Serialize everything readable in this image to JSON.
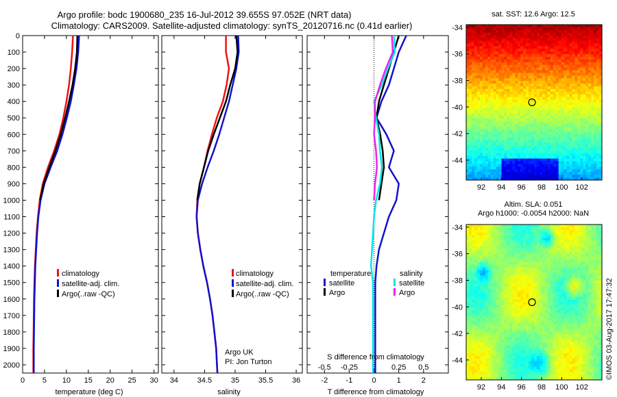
{
  "header": {
    "title_line1": "Argo profile: bodc 1900680_235 16-Jul-2012 39.655S 97.052E (NRT data)",
    "title_line2": "Climatology: CARS2009. Satellite-adjusted climatology: synTS_20120716.nc (0.41d earlier)"
  },
  "panels": {
    "temperature": {
      "xlabel": "temperature (deg C)"
    },
    "salinity": {
      "xlabel": "salinity",
      "note_line1": "Argo UK",
      "note_line2": "PI: Jon Turton"
    },
    "difference": {
      "xlabel_top": "S difference from climatology",
      "xlabel_bottom": "T difference from climatology"
    }
  },
  "legends": {
    "profile": {
      "items": [
        "climatology",
        "satellite-adj. clim.",
        "Argo(..raw -QC)"
      ]
    },
    "difference": {
      "temperature_header": "temperature",
      "salinity_header": "salinity",
      "t_items": [
        "satellite",
        "Argo"
      ],
      "s_items": [
        "satellite",
        "Argo"
      ]
    }
  },
  "maps": {
    "sst": {
      "title": "sat. SST: 12.6 Argo: 12.5"
    },
    "sla": {
      "title_line1": "Altim. SLA: 0.051",
      "title_line2": "Argo h1000: -0.0054 h2000: NaN"
    }
  },
  "stamp": "©IMOS 03-Aug-2017 17:47:32",
  "colors": {
    "climatology": "#ee1111",
    "satellite": "#1111cc",
    "argo": "#000000",
    "sal_satellite": "#00e5e5",
    "sal_argo": "#ee22ee"
  },
  "chart_data": [
    {
      "type": "line",
      "name": "temperature-profile",
      "xlabel": "temperature (deg C)",
      "ylabel": "",
      "xlim": [
        0,
        31
      ],
      "ylim": [
        2050,
        0
      ],
      "xticks": [
        0,
        5,
        10,
        15,
        20,
        25,
        30
      ],
      "yticks": [
        0,
        100,
        200,
        300,
        400,
        500,
        600,
        700,
        800,
        900,
        1000,
        1100,
        1200,
        1300,
        1400,
        1500,
        1600,
        1700,
        1800,
        1900,
        2000
      ],
      "series": [
        {
          "name": "climatology",
          "x": [
            11.5,
            11.3,
            11.0,
            10.6,
            10.0,
            9.3,
            8.4,
            7.2,
            5.8,
            4.6,
            3.9,
            3.5,
            3.2,
            3.0,
            2.8,
            2.7,
            2.6,
            2.55,
            2.5,
            2.45,
            2.45
          ],
          "y": [
            0,
            100,
            200,
            300,
            400,
            500,
            600,
            700,
            800,
            900,
            1000,
            1100,
            1200,
            1300,
            1400,
            1500,
            1600,
            1700,
            1800,
            1900,
            2050
          ]
        },
        {
          "name": "satellite-adj. clim.",
          "x": [
            12.9,
            12.7,
            12.3,
            11.7,
            11.0,
            10.1,
            9.1,
            7.9,
            6.4,
            5.0,
            4.1,
            3.6,
            3.3,
            3.1,
            2.9,
            2.8,
            2.7,
            2.65,
            2.6,
            2.55,
            2.55
          ],
          "y": [
            0,
            100,
            200,
            300,
            400,
            500,
            600,
            700,
            800,
            900,
            1000,
            1100,
            1200,
            1300,
            1400,
            1500,
            1600,
            1700,
            1800,
            1900,
            2050
          ]
        },
        {
          "name": "Argo(..raw -QC)",
          "x": [
            12.5,
            12.4,
            12.0,
            11.4,
            10.6,
            9.7,
            8.7,
            7.5,
            6.1,
            4.8,
            4.0
          ],
          "y": [
            0,
            100,
            200,
            300,
            400,
            500,
            600,
            700,
            800,
            900,
            1000
          ]
        }
      ]
    },
    {
      "type": "line",
      "name": "salinity-profile",
      "xlabel": "salinity",
      "ylabel": "",
      "xlim": [
        33.8,
        36.1
      ],
      "ylim": [
        2050,
        0
      ],
      "xticks": [
        34,
        34.5,
        35,
        35.5,
        36
      ],
      "series": [
        {
          "name": "climatology",
          "x": [
            34.85,
            34.85,
            34.9,
            34.86,
            34.8,
            34.7,
            34.62,
            34.55,
            34.49,
            34.42,
            34.38,
            34.37,
            34.39,
            34.43,
            34.48,
            34.54,
            34.59,
            34.63,
            34.66,
            34.69,
            34.71
          ],
          "y": [
            0,
            100,
            200,
            300,
            400,
            500,
            600,
            700,
            800,
            900,
            1000,
            1100,
            1200,
            1300,
            1400,
            1500,
            1600,
            1700,
            1800,
            1900,
            2050
          ]
        },
        {
          "name": "satellite-adj. clim.",
          "x": [
            35.05,
            35.06,
            35.02,
            34.96,
            34.9,
            34.82,
            34.74,
            34.65,
            34.55,
            34.46,
            34.39,
            34.37,
            34.39,
            34.43,
            34.48,
            34.54,
            34.59,
            34.63,
            34.66,
            34.69,
            34.71
          ],
          "y": [
            0,
            100,
            200,
            300,
            400,
            500,
            600,
            700,
            800,
            900,
            1000,
            1100,
            1200,
            1300,
            1400,
            1500,
            1600,
            1700,
            1800,
            1900,
            2050
          ]
        },
        {
          "name": "Argo(..raw -QC)",
          "x": [
            35.02,
            35.04,
            35.0,
            34.92,
            34.85,
            34.75,
            34.65,
            34.56,
            34.49,
            34.42,
            34.38
          ],
          "y": [
            0,
            100,
            200,
            300,
            400,
            500,
            600,
            700,
            800,
            900,
            1000
          ]
        }
      ]
    },
    {
      "type": "line",
      "name": "difference-profile",
      "xlabel_top": "S difference from climatology",
      "xlabel_bottom": "T difference from climatology",
      "xlim_T": [
        -2.7,
        3.0
      ],
      "xticks_T": [
        -2,
        -1,
        0,
        1,
        2
      ],
      "xlim_S": [
        -0.675,
        0.75
      ],
      "xticks_S": [
        -0.5,
        -0.25,
        0,
        0.25,
        0.5
      ],
      "xticklabels_S": [
        "-0.5",
        "-0.25",
        "0",
        "0.25",
        "0.5"
      ],
      "ylim": [
        2050,
        0
      ],
      "series": [
        {
          "name": "temperature satellite",
          "quantity": "T",
          "x": [
            1.3,
            1.0,
            0.8,
            0.6,
            0.3,
            0.1,
            0.5,
            0.8,
            0.6,
            1.0,
            0.9,
            0.6,
            0.4,
            0.2,
            0.1,
            0.05,
            0.05,
            0.05,
            0.05,
            0.05,
            0.05
          ],
          "y": [
            0,
            100,
            200,
            300,
            400,
            500,
            600,
            700,
            800,
            900,
            1000,
            1100,
            1200,
            1300,
            1400,
            1500,
            1600,
            1700,
            1800,
            1900,
            2050
          ]
        },
        {
          "name": "temperature Argo",
          "quantity": "T",
          "x": [
            1.0,
            0.8,
            0.6,
            0.4,
            0.2,
            0.1,
            0.25,
            0.35,
            0.4,
            0.3,
            0.2
          ],
          "y": [
            0,
            100,
            200,
            300,
            400,
            500,
            600,
            700,
            800,
            900,
            1000
          ]
        },
        {
          "name": "salinity satellite",
          "quantity": "S",
          "x": [
            0.2,
            0.21,
            0.14,
            0.08,
            0.0,
            0.02,
            0.05,
            0.06,
            0.08,
            0.06,
            0.02,
            0.0,
            -0.01,
            -0.02,
            -0.03,
            -0.01,
            -0.01,
            -0.01,
            -0.01,
            -0.01,
            -0.01
          ],
          "y": [
            0,
            100,
            200,
            300,
            400,
            500,
            600,
            700,
            800,
            900,
            1000,
            1100,
            1200,
            1300,
            1400,
            1500,
            1600,
            1700,
            1800,
            1900,
            2050
          ]
        },
        {
          "name": "salinity Argo",
          "quantity": "S",
          "x": [
            0.18,
            0.19,
            0.12,
            0.06,
            0.01,
            0.01,
            0.0,
            0.02,
            0.03,
            0.01,
            0.0
          ],
          "y": [
            0,
            100,
            200,
            300,
            400,
            500,
            600,
            700,
            800,
            900,
            1000
          ]
        }
      ]
    },
    {
      "type": "heatmap",
      "name": "sst-map",
      "title": "sat. SST: 12.6 Argo: 12.5",
      "xlim": [
        90.5,
        104
      ],
      "ylim": [
        -45.5,
        -33.8
      ],
      "xticks": [
        92,
        94,
        96,
        98,
        100,
        102
      ],
      "yticks": [
        -34,
        -36,
        -38,
        -40,
        -42,
        -44
      ],
      "marker": {
        "lon": 97.05,
        "lat": -39.65
      }
    },
    {
      "type": "heatmap",
      "name": "sla-map",
      "title": "Altim. SLA: 0.051",
      "subtitle": "Argo h1000: -0.0054 h2000: NaN",
      "xlim": [
        90.5,
        104
      ],
      "ylim": [
        -45.5,
        -33.8
      ],
      "xticks": [
        92,
        94,
        96,
        98,
        100,
        102
      ],
      "yticks": [
        -34,
        -36,
        -38,
        -40,
        -42,
        -44
      ],
      "marker": {
        "lon": 97.05,
        "lat": -39.65
      }
    }
  ]
}
